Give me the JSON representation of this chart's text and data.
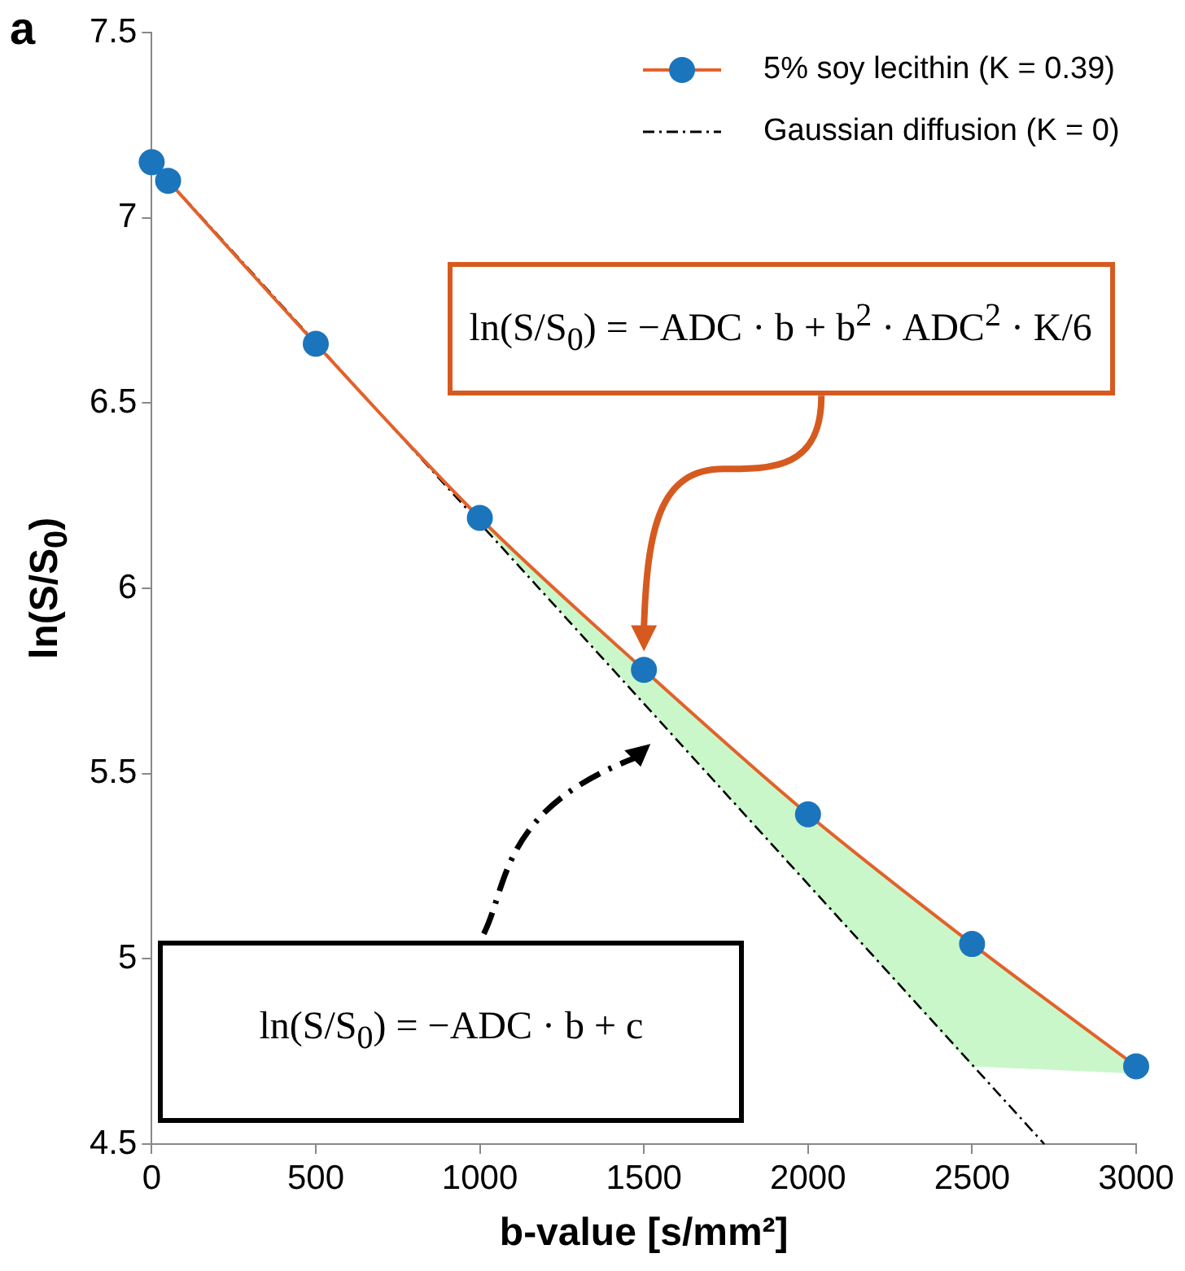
{
  "chart_data": {
    "type": "line",
    "xlabel": "b-value [s/mm²]",
    "ylabel": "ln(S/S$_{0}$)",
    "xlim": [
      0,
      3000
    ],
    "xticks": [
      0,
      500,
      1000,
      1500,
      2000,
      2500,
      3000
    ],
    "ylim": [
      4.5,
      7.5
    ],
    "yticks": [
      4.5,
      5,
      5.5,
      6,
      6.5,
      7,
      7.5
    ],
    "grid": false,
    "legend": "top right",
    "series": [
      {
        "name": "5% soy lecithin (K = 0.39)",
        "color": "#e2622a",
        "colors": [
          "#1b75bc",
          "#1b75bc",
          "#1b75bc",
          "#1b75bc",
          "#1b75bc",
          "#1b75bc",
          "#1b75bc",
          "#1b75bc"
        ],
        "marker": "circle",
        "line_style": "solid",
        "x": [
          0,
          50,
          500,
          1000,
          1500,
          2000,
          2500,
          3000
        ],
        "values": [
          7.15,
          7.1,
          6.66,
          6.19,
          5.78,
          5.39,
          5.04,
          4.71
        ],
        "lower": [
          7.15,
          7.1,
          6.66,
          6.18,
          5.69,
          5.2,
          4.71,
          4.69
        ],
        "upper": [
          7.15,
          7.1,
          6.66,
          6.19,
          5.78,
          5.39,
          5.04,
          4.71
        ]
      },
      {
        "name": "Gaussian diffusion (K = 0)",
        "color": "#000000",
        "marker": "none",
        "line_style": "dashed",
        "x": [
          0,
          2720
        ],
        "values": [
          7.15,
          4.5
        ]
      }
    ],
    "annotations": [
      "a",
      "ln(S/S$_{0}$) = −ADC · b + b$^{2}$ · ADC$^{2}$ · K/6",
      "ln(S/S$_{0}$) = −ADC · b + c"
    ]
  }
}
